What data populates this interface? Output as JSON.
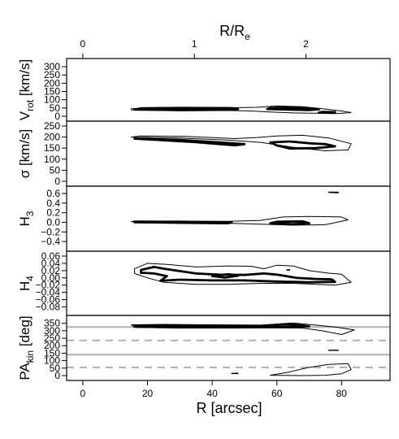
{
  "chart_data": {
    "type": "contour",
    "x_axis": {
      "label": "R [arcsec]",
      "range": [
        -5,
        95
      ],
      "ticks": [
        0,
        20,
        40,
        60,
        80
      ]
    },
    "top_axis": {
      "label_base": "R/R",
      "label_sub": "e",
      "ticks": [
        0,
        1,
        2
      ],
      "arcsec_per_unit": 34.5
    },
    "panels": [
      {
        "id": "vrot",
        "ylabel": "V",
        "ylabel_sub": "rot",
        "ylabel_unit": " [km/s]",
        "ylim": [
          0,
          320
        ],
        "yticks": [
          "0",
          "50",
          "100",
          "150",
          "200",
          "250",
          "300"
        ],
        "ytick_values": [
          0,
          50,
          100,
          150,
          200,
          250,
          300
        ],
        "hlines": [],
        "contours": [
          {
            "level": "outer",
            "pts": [
              [
                15,
                38
              ],
              [
                30,
                33
              ],
              [
                45,
                35
              ],
              [
                52,
                32
              ],
              [
                58,
                26
              ],
              [
                65,
                20
              ],
              [
                72,
                18
              ],
              [
                78,
                16
              ],
              [
                83,
                22
              ],
              [
                80,
                32
              ],
              [
                74,
                46
              ],
              [
                68,
                58
              ],
              [
                60,
                62
              ],
              [
                54,
                54
              ],
              [
                48,
                52
              ],
              [
                36,
                53
              ],
              [
                22,
                52
              ],
              [
                15,
                46
              ]
            ]
          },
          {
            "level": "inner",
            "pts": [
              [
                16,
                41
              ],
              [
                30,
                38
              ],
              [
                46,
                40
              ],
              [
                48,
                44
              ],
              [
                46,
                49
              ],
              [
                30,
                50
              ],
              [
                18,
                48
              ]
            ]
          },
          {
            "level": "inner",
            "pts": [
              [
                57,
                44
              ],
              [
                64,
                40
              ],
              [
                70,
                38
              ],
              [
                73,
                42
              ],
              [
                70,
                48
              ],
              [
                63,
                52
              ],
              [
                58,
                50
              ]
            ]
          },
          {
            "level": "inner",
            "pts": [
              [
                73,
                22
              ],
              [
                77,
                21
              ],
              [
                78,
                25
              ],
              [
                74,
                26
              ]
            ]
          }
        ]
      },
      {
        "id": "sigma",
        "ylabel": "σ [km/s]",
        "ylabel_sub": "",
        "ylabel_unit": "",
        "ylim": [
          0,
          250
        ],
        "yticks": [
          "0",
          "50",
          "100",
          "150",
          "200",
          "250"
        ],
        "ytick_values": [
          0,
          50,
          100,
          150,
          200,
          250
        ],
        "hlines": [],
        "contours": [
          {
            "level": "outer",
            "pts": [
              [
                15,
                200
              ],
              [
                30,
                196
              ],
              [
                45,
                186
              ],
              [
                55,
                176
              ],
              [
                65,
                154
              ],
              [
                75,
                138
              ],
              [
                82,
                142
              ],
              [
                83,
                170
              ],
              [
                76,
                196
              ],
              [
                68,
                208
              ],
              [
                60,
                205
              ],
              [
                54,
                198
              ],
              [
                47,
                193
              ],
              [
                32,
                203
              ],
              [
                18,
                205
              ]
            ]
          },
          {
            "level": "inner",
            "pts": [
              [
                16,
                193
              ],
              [
                30,
                187
              ],
              [
                45,
                173
              ],
              [
                50,
                168
              ],
              [
                47,
                163
              ],
              [
                35,
                177
              ],
              [
                22,
                188
              ]
            ]
          },
          {
            "level": "inner",
            "pts": [
              [
                58,
                176
              ],
              [
                64,
                180
              ],
              [
                70,
                172
              ],
              [
                75,
                168
              ],
              [
                78,
                158
              ],
              [
                72,
                150
              ],
              [
                64,
                148
              ],
              [
                60,
                162
              ]
            ]
          }
        ]
      },
      {
        "id": "h3",
        "ylabel": "H",
        "ylabel_sub": "3",
        "ylabel_unit": "",
        "ylim": [
          -0.5,
          0.65
        ],
        "yticks": [
          "−0.4",
          "−0.2",
          "0.0",
          "0.2",
          "0.4",
          "0.6"
        ],
        "ytick_values": [
          -0.4,
          -0.2,
          0.0,
          0.2,
          0.4,
          0.6
        ],
        "hlines": [],
        "contours": [
          {
            "level": "outer",
            "pts": [
              [
                15,
                0.01
              ],
              [
                30,
                0.0
              ],
              [
                45,
                -0.02
              ],
              [
                55,
                -0.04
              ],
              [
                65,
                -0.06
              ],
              [
                75,
                -0.05
              ],
              [
                82,
                0.05
              ],
              [
                80,
                0.11
              ],
              [
                70,
                0.12
              ],
              [
                62,
                0.11
              ],
              [
                55,
                0.04
              ],
              [
                45,
                0.02
              ],
              [
                30,
                0.02
              ],
              [
                16,
                0.03
              ]
            ]
          },
          {
            "level": "inner",
            "pts": [
              [
                16,
                0.0
              ],
              [
                30,
                -0.01
              ],
              [
                45,
                -0.02
              ],
              [
                46,
                0.0
              ],
              [
                30,
                0.01
              ],
              [
                17,
                0.01
              ]
            ]
          },
          {
            "level": "inner",
            "pts": [
              [
                58,
                -0.02
              ],
              [
                65,
                -0.04
              ],
              [
                70,
                -0.02
              ],
              [
                68,
                0.02
              ],
              [
                60,
                0.01
              ]
            ]
          },
          {
            "level": "outer",
            "pts": [
              [
                76,
                0.62
              ],
              [
                79,
                0.61
              ],
              [
                79,
                0.63
              ],
              [
                76,
                0.63
              ]
            ]
          }
        ]
      },
      {
        "id": "h4",
        "ylabel": "H",
        "ylabel_sub": "4",
        "ylabel_unit": "",
        "ylim": [
          -0.09,
          0.06
        ],
        "yticks": [
          "−0.08",
          "−0.06",
          "−0.04",
          "−0.02",
          "0.00",
          "0.02",
          "0.04",
          "0.06"
        ],
        "ytick_values": [
          -0.08,
          -0.06,
          -0.04,
          -0.02,
          0.0,
          0.02,
          0.04,
          0.06
        ],
        "hlines": [],
        "contours": [
          {
            "level": "outer",
            "pts": [
              [
                16,
                0.025
              ],
              [
                20,
                0.04
              ],
              [
                26,
                0.037
              ],
              [
                35,
                0.03
              ],
              [
                45,
                0.033
              ],
              [
                52,
                0.032
              ],
              [
                56,
                0.025
              ],
              [
                60,
                0.035
              ],
              [
                65,
                0.033
              ],
              [
                70,
                0.02
              ],
              [
                76,
                0.013
              ],
              [
                80,
                0.01
              ],
              [
                83,
                -0.012
              ],
              [
                78,
                -0.02
              ],
              [
                65,
                -0.015
              ],
              [
                55,
                -0.015
              ],
              [
                45,
                -0.018
              ],
              [
                35,
                -0.018
              ],
              [
                25,
                -0.012
              ],
              [
                20,
                0.0
              ],
              [
                16,
                0.012
              ]
            ]
          },
          {
            "level": "inner",
            "pts": [
              [
                18,
                0.022
              ],
              [
                22,
                0.03
              ],
              [
                26,
                0.024
              ],
              [
                35,
                0.012
              ],
              [
                42,
                0.009
              ],
              [
                50,
                0.008
              ],
              [
                56,
                0.012
              ],
              [
                60,
                0.009
              ],
              [
                66,
                0.0
              ],
              [
                72,
                -0.003
              ],
              [
                77,
                -0.004
              ],
              [
                78,
                -0.011
              ],
              [
                70,
                -0.012
              ],
              [
                60,
                -0.01
              ],
              [
                50,
                -0.007
              ],
              [
                40,
                -0.007
              ],
              [
                30,
                -0.005
              ],
              [
                24,
                -0.008
              ],
              [
                26,
                0.005
              ],
              [
                22,
                0.012
              ],
              [
                18,
                0.014
              ]
            ]
          },
          {
            "level": "inner",
            "pts": [
              [
                40,
                0.005
              ],
              [
                45,
                0.01
              ],
              [
                48,
                0.006
              ],
              [
                44,
                0.001
              ]
            ]
          },
          {
            "level": "outer",
            "pts": [
              [
                63,
                0.022
              ],
              [
                64,
                0.023
              ],
              [
                64,
                0.021
              ],
              [
                63,
                0.021
              ]
            ]
          }
        ]
      },
      {
        "id": "pakin",
        "ylabel": "PA",
        "ylabel_sub": "kin",
        "ylabel_unit": " [deg]",
        "ylim": [
          0,
          370
        ],
        "yticks": [
          "0",
          "50",
          "100",
          "150",
          "200",
          "250",
          "300",
          "350"
        ],
        "ytick_values": [
          0,
          50,
          100,
          150,
          200,
          250,
          300,
          350
        ],
        "hlines": [
          {
            "y": 325,
            "style": "solid"
          },
          {
            "y": 140,
            "style": "solid"
          },
          {
            "y": 235,
            "style": "dashed"
          },
          {
            "y": 55,
            "style": "dashed"
          }
        ],
        "contours": [
          {
            "level": "outer",
            "pts": [
              [
                15,
                340
              ],
              [
                25,
                343
              ],
              [
                40,
                340
              ],
              [
                55,
                338
              ],
              [
                60,
                345
              ],
              [
                65,
                352
              ],
              [
                72,
                338
              ],
              [
                78,
                325
              ],
              [
                84,
                305
              ],
              [
                80,
                275
              ],
              [
                74,
                300
              ],
              [
                68,
                318
              ],
              [
                58,
                320
              ],
              [
                45,
                318
              ],
              [
                30,
                318
              ],
              [
                16,
                322
              ]
            ]
          },
          {
            "level": "inner",
            "pts": [
              [
                16,
                333
              ],
              [
                30,
                333
              ],
              [
                45,
                331
              ],
              [
                55,
                331
              ],
              [
                62,
                343
              ],
              [
                66,
                340
              ],
              [
                70,
                330
              ],
              [
                60,
                325
              ],
              [
                45,
                325
              ],
              [
                30,
                326
              ],
              [
                17,
                327
              ]
            ]
          },
          {
            "level": "outer",
            "pts": [
              [
                58,
                2
              ],
              [
                63,
                20
              ],
              [
                70,
                55
              ],
              [
                76,
                75
              ],
              [
                82,
                80
              ],
              [
                83,
                40
              ],
              [
                80,
                12
              ],
              [
                75,
                2
              ],
              [
                68,
                0
              ]
            ]
          },
          {
            "level": "outer",
            "pts": [
              [
                46,
                15
              ],
              [
                48,
                17
              ],
              [
                48,
                13
              ],
              [
                46,
                13
              ]
            ]
          },
          {
            "level": "outer",
            "pts": [
              [
                76,
                170
              ],
              [
                79,
                171
              ],
              [
                79,
                168
              ],
              [
                76,
                168
              ]
            ]
          }
        ]
      }
    ]
  }
}
